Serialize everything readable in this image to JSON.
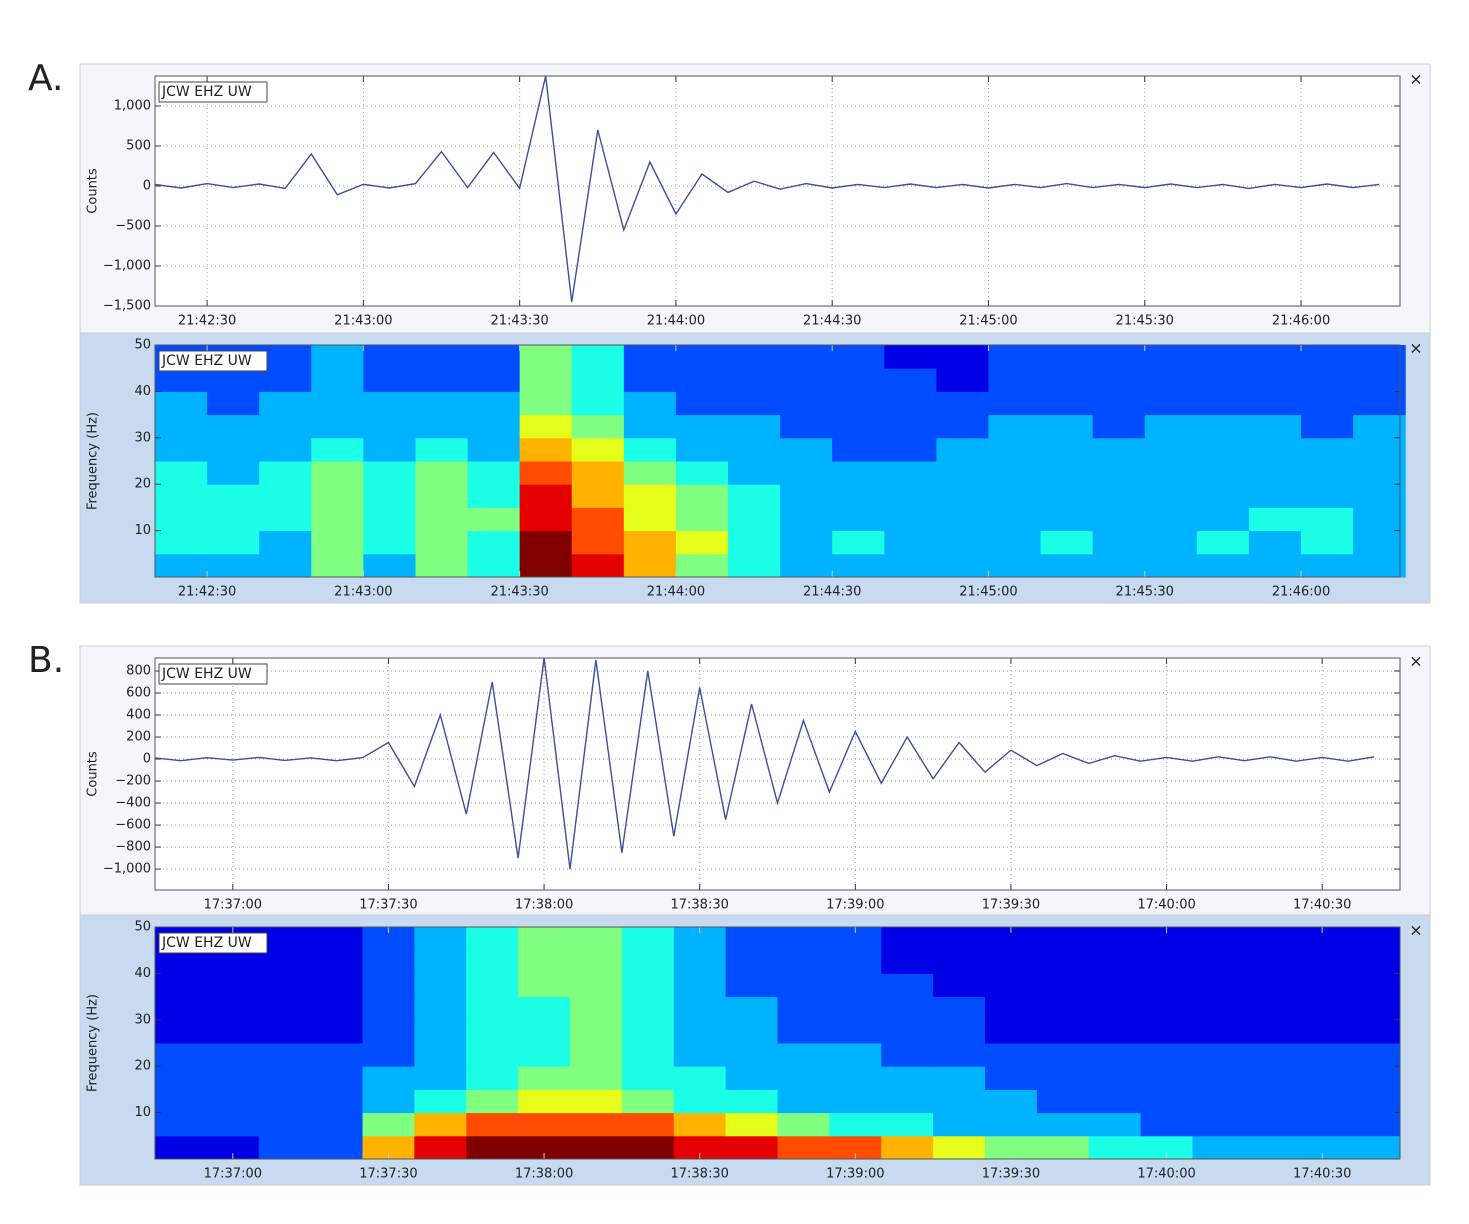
{
  "panel_labels": [
    "A.",
    "B."
  ],
  "close": "×",
  "chart_data": [
    {
      "type": "line",
      "y_label": "Counts",
      "grid": true,
      "xlim": [
        "21:42:20",
        "21:46:19"
      ],
      "xticks": [
        "21:42:30",
        "21:43:00",
        "21:43:30",
        "21:44:00",
        "21:44:30",
        "21:45:00",
        "21:45:30",
        "21:46:00"
      ],
      "ylim": [
        -1500,
        1375
      ],
      "yticks": [
        {
          "value": -1500,
          "label": "−1,500"
        },
        {
          "value": -1000,
          "label": "−1,000"
        },
        {
          "value": -500,
          "label": "−500"
        },
        0,
        500,
        {
          "value": 1000,
          "label": "1,000"
        }
      ],
      "x": [
        "21:42:20",
        "21:42:25",
        "21:42:30",
        "21:42:35",
        "21:42:40",
        "21:42:45",
        "21:42:50",
        "21:42:55",
        "21:43:00",
        "21:43:05",
        "21:43:10",
        "21:43:15",
        "21:43:20",
        "21:43:25",
        "21:43:30",
        "21:43:35",
        "21:43:40",
        "21:43:45",
        "21:43:50",
        "21:43:55",
        "21:44:00",
        "21:44:05",
        "21:44:10",
        "21:44:15",
        "21:44:20",
        "21:44:25",
        "21:44:30",
        "21:44:35",
        "21:44:40",
        "21:44:45",
        "21:44:50",
        "21:44:55",
        "21:45:00",
        "21:45:05",
        "21:45:10",
        "21:45:15",
        "21:45:20",
        "21:45:25",
        "21:45:30",
        "21:45:35",
        "21:45:40",
        "21:45:45",
        "21:45:50",
        "21:45:55",
        "21:46:00",
        "21:46:05",
        "21:46:10",
        "21:46:15"
      ],
      "series": [
        {
          "name": "JCW EHZ UW",
          "color": "#3b4f9c",
          "values": [
            20,
            -25,
            30,
            -20,
            25,
            -30,
            400,
            -110,
            20,
            -25,
            30,
            430,
            -20,
            420,
            -30,
            1375,
            -1450,
            700,
            -550,
            300,
            -350,
            150,
            -80,
            60,
            -40,
            30,
            -25,
            20,
            -20,
            25,
            -20,
            20,
            -25,
            20,
            -20,
            30,
            -20,
            20,
            -20,
            25,
            -20,
            20,
            -30,
            20,
            -20,
            25,
            -20,
            20
          ]
        }
      ]
    },
    {
      "type": "heatmap",
      "label": "JCW EHZ UW",
      "y_label": "Frequency (Hz)",
      "grid": false,
      "color_scale": "jet",
      "zlim": [
        0,
        10
      ],
      "xlim": [
        "21:42:20",
        "21:46:19"
      ],
      "xticks": [
        "21:42:30",
        "21:43:00",
        "21:43:30",
        "21:44:00",
        "21:44:30",
        "21:45:00",
        "21:45:30",
        "21:46:00"
      ],
      "ylim": [
        0,
        50
      ],
      "yticks": [
        10,
        20,
        30,
        40,
        50
      ],
      "xbins": [
        "21:42:20",
        "21:42:30",
        "21:42:40",
        "21:42:50",
        "21:43:00",
        "21:43:10",
        "21:43:20",
        "21:43:30",
        "21:43:40",
        "21:43:50",
        "21:44:00",
        "21:44:10",
        "21:44:20",
        "21:44:30",
        "21:44:40",
        "21:44:50",
        "21:45:00",
        "21:45:10",
        "21:45:20",
        "21:45:30",
        "21:45:40",
        "21:45:50",
        "21:46:00",
        "21:46:10",
        "21:46:20"
      ],
      "ybins": [
        0,
        5,
        10,
        15,
        20,
        25,
        30,
        35,
        40,
        45,
        50
      ],
      "values": [
        [
          3,
          3,
          3,
          5,
          3,
          5,
          4,
          10,
          9,
          7,
          5,
          4,
          3,
          3,
          3,
          3,
          3,
          3,
          3,
          3,
          3,
          3,
          3,
          3
        ],
        [
          4,
          4,
          3,
          5,
          4,
          5,
          4,
          10,
          8,
          7,
          6,
          4,
          3,
          4,
          3,
          3,
          3,
          4,
          3,
          3,
          4,
          3,
          4,
          3
        ],
        [
          4,
          4,
          4,
          5,
          4,
          5,
          5,
          9,
          8,
          6,
          5,
          4,
          3,
          3,
          3,
          3,
          3,
          3,
          3,
          3,
          3,
          4,
          4,
          3
        ],
        [
          4,
          4,
          4,
          5,
          4,
          5,
          4,
          9,
          7,
          6,
          5,
          4,
          3,
          3,
          3,
          3,
          3,
          3,
          3,
          3,
          3,
          3,
          3,
          3
        ],
        [
          4,
          3,
          4,
          5,
          4,
          5,
          4,
          8,
          7,
          5,
          4,
          3,
          3,
          3,
          3,
          3,
          3,
          3,
          3,
          3,
          3,
          3,
          3,
          3
        ],
        [
          3,
          3,
          3,
          4,
          3,
          4,
          3,
          7,
          6,
          4,
          3,
          3,
          3,
          2,
          2,
          3,
          3,
          3,
          3,
          3,
          3,
          3,
          3,
          3
        ],
        [
          3,
          3,
          3,
          3,
          3,
          3,
          3,
          6,
          5,
          3,
          3,
          3,
          2,
          2,
          2,
          2,
          3,
          3,
          2,
          3,
          3,
          3,
          2,
          3
        ],
        [
          3,
          2,
          3,
          3,
          3,
          3,
          3,
          5,
          4,
          3,
          2,
          2,
          2,
          2,
          2,
          2,
          2,
          2,
          2,
          2,
          2,
          2,
          2,
          2
        ],
        [
          2,
          2,
          2,
          3,
          2,
          2,
          2,
          5,
          4,
          2,
          2,
          2,
          2,
          2,
          2,
          1,
          2,
          2,
          2,
          2,
          2,
          2,
          2,
          2
        ],
        [
          2,
          2,
          2,
          3,
          2,
          2,
          2,
          5,
          4,
          2,
          2,
          2,
          2,
          2,
          1,
          1,
          2,
          2,
          2,
          2,
          2,
          2,
          2,
          2
        ]
      ]
    },
    {
      "type": "line",
      "y_label": "Counts",
      "grid": true,
      "xlim": [
        "17:36:45",
        "17:40:45"
      ],
      "xticks": [
        "17:37:00",
        "17:37:30",
        "17:38:00",
        "17:38:30",
        "17:39:00",
        "17:39:30",
        "17:40:00",
        "17:40:30"
      ],
      "ylim": [
        -1190,
        918
      ],
      "yticks": [
        {
          "value": -1000,
          "label": "−1,000"
        },
        {
          "value": -800,
          "label": "−800"
        },
        {
          "value": -600,
          "label": "−600"
        },
        {
          "value": -400,
          "label": "−400"
        },
        {
          "value": -200,
          "label": "−200"
        },
        0,
        200,
        400,
        600,
        800
      ],
      "x": [
        "17:36:45",
        "17:36:50",
        "17:36:55",
        "17:37:00",
        "17:37:05",
        "17:37:10",
        "17:37:15",
        "17:37:20",
        "17:37:25",
        "17:37:30",
        "17:37:35",
        "17:37:40",
        "17:37:45",
        "17:37:50",
        "17:37:55",
        "17:38:00",
        "17:38:05",
        "17:38:10",
        "17:38:15",
        "17:38:20",
        "17:38:25",
        "17:38:30",
        "17:38:35",
        "17:38:40",
        "17:38:45",
        "17:38:50",
        "17:38:55",
        "17:39:00",
        "17:39:05",
        "17:39:10",
        "17:39:15",
        "17:39:20",
        "17:39:25",
        "17:39:30",
        "17:39:35",
        "17:39:40",
        "17:39:45",
        "17:39:50",
        "17:39:55",
        "17:40:00",
        "17:40:05",
        "17:40:10",
        "17:40:15",
        "17:40:20",
        "17:40:25",
        "17:40:30",
        "17:40:35",
        "17:40:40"
      ],
      "series": [
        {
          "name": "JCW EHZ UW",
          "color": "#3b4f9c",
          "values": [
            10,
            -15,
            12,
            -10,
            15,
            -12,
            10,
            -15,
            12,
            150,
            -250,
            400,
            -500,
            700,
            -900,
            918,
            -1000,
            900,
            -850,
            800,
            -700,
            650,
            -550,
            500,
            -400,
            350,
            -300,
            250,
            -220,
            200,
            -180,
            150,
            -120,
            80,
            -60,
            50,
            -40,
            30,
            -20,
            15,
            -20,
            20,
            -15,
            20,
            -20,
            15,
            -20,
            20
          ]
        }
      ]
    },
    {
      "type": "heatmap",
      "label": "JCW EHZ UW",
      "y_label": "Frequency (Hz)",
      "grid": false,
      "color_scale": "jet",
      "zlim": [
        0,
        10
      ],
      "xlim": [
        "17:36:45",
        "17:40:45"
      ],
      "xticks": [
        "17:37:00",
        "17:37:30",
        "17:38:00",
        "17:38:30",
        "17:39:00",
        "17:39:30",
        "17:40:00",
        "17:40:30"
      ],
      "ylim": [
        0,
        50
      ],
      "yticks": [
        10,
        20,
        30,
        40,
        50
      ],
      "xbins": [
        "17:36:45",
        "17:36:55",
        "17:37:05",
        "17:37:15",
        "17:37:25",
        "17:37:35",
        "17:37:45",
        "17:37:55",
        "17:38:05",
        "17:38:15",
        "17:38:25",
        "17:38:35",
        "17:38:45",
        "17:38:55",
        "17:39:05",
        "17:39:15",
        "17:39:25",
        "17:39:35",
        "17:39:45",
        "17:39:55",
        "17:40:05",
        "17:40:15",
        "17:40:25",
        "17:40:35",
        "17:40:45"
      ],
      "ybins": [
        0,
        5,
        10,
        15,
        20,
        25,
        30,
        35,
        40,
        45,
        50
      ],
      "values": [
        [
          1,
          1,
          2,
          2,
          7,
          9,
          10,
          10,
          10,
          10,
          9,
          9,
          8,
          8,
          7,
          6,
          5,
          5,
          4,
          4,
          3,
          3,
          3,
          3
        ],
        [
          2,
          2,
          2,
          2,
          5,
          7,
          8,
          8,
          8,
          8,
          7,
          6,
          5,
          4,
          4,
          3,
          3,
          3,
          3,
          2,
          2,
          2,
          2,
          2
        ],
        [
          2,
          2,
          2,
          2,
          3,
          4,
          5,
          6,
          6,
          5,
          4,
          4,
          3,
          3,
          3,
          3,
          3,
          2,
          2,
          2,
          2,
          2,
          2,
          2
        ],
        [
          2,
          2,
          2,
          2,
          3,
          3,
          4,
          5,
          5,
          4,
          4,
          3,
          3,
          3,
          3,
          3,
          2,
          2,
          2,
          2,
          2,
          2,
          2,
          2
        ],
        [
          2,
          2,
          2,
          2,
          2,
          3,
          4,
          4,
          5,
          4,
          3,
          3,
          3,
          3,
          2,
          2,
          2,
          2,
          2,
          2,
          2,
          2,
          2,
          2
        ],
        [
          1,
          1,
          1,
          1,
          2,
          3,
          4,
          4,
          5,
          4,
          3,
          3,
          2,
          2,
          2,
          2,
          1,
          1,
          1,
          1,
          1,
          1,
          1,
          1
        ],
        [
          1,
          1,
          1,
          1,
          2,
          3,
          4,
          4,
          5,
          4,
          3,
          3,
          2,
          2,
          2,
          2,
          1,
          1,
          1,
          1,
          1,
          1,
          1,
          1
        ],
        [
          1,
          1,
          1,
          1,
          2,
          3,
          4,
          5,
          5,
          4,
          3,
          2,
          2,
          2,
          2,
          1,
          1,
          1,
          1,
          1,
          1,
          1,
          1,
          1
        ],
        [
          1,
          1,
          1,
          1,
          2,
          3,
          4,
          5,
          5,
          4,
          3,
          2,
          2,
          2,
          1,
          1,
          1,
          1,
          1,
          1,
          1,
          1,
          1,
          1
        ],
        [
          1,
          1,
          1,
          1,
          2,
          3,
          4,
          5,
          5,
          4,
          3,
          2,
          2,
          2,
          1,
          1,
          1,
          1,
          1,
          1,
          1,
          1,
          1,
          1
        ]
      ]
    }
  ]
}
